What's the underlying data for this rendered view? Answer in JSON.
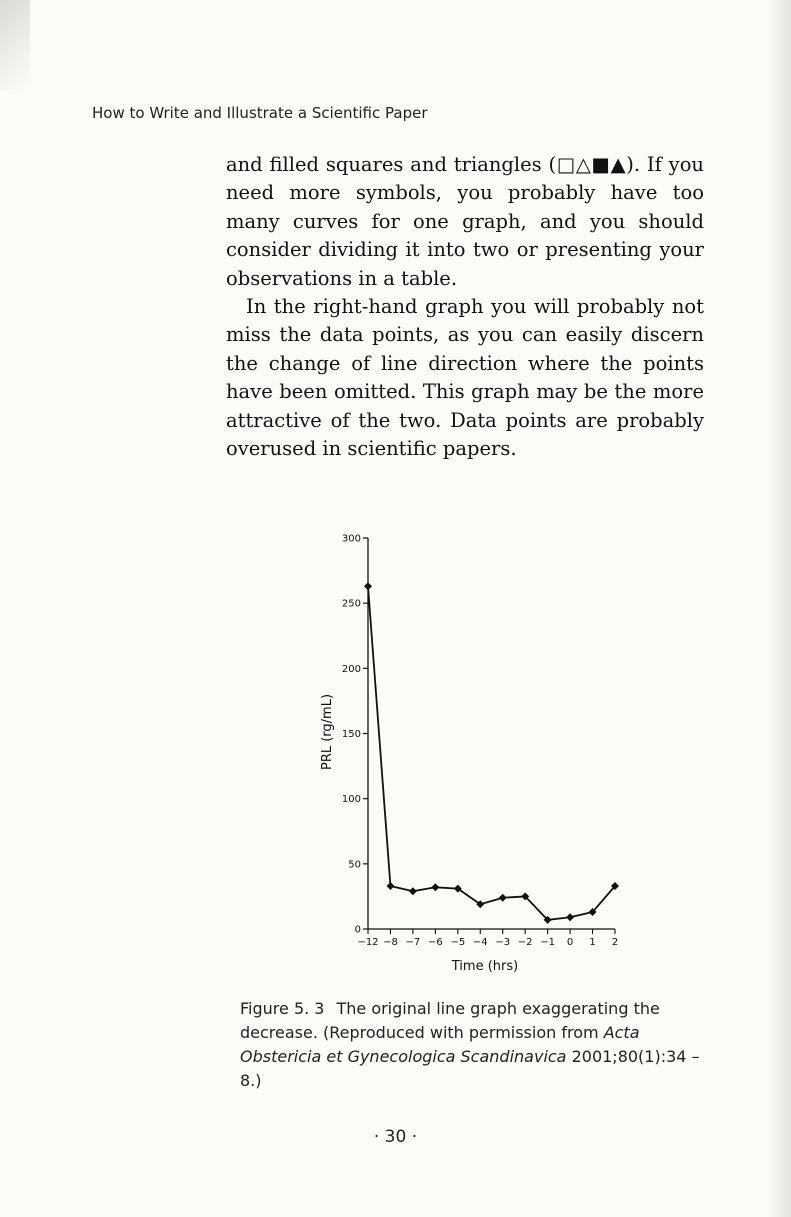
{
  "running_head": "How to Write and Illustrate a Scientific Paper",
  "paragraphs": [
    "and filled squares and triangles (□△■▲). If you need more symbols, you probably have too many curves for one graph, and you should consider dividing it into two or presenting your observations in a table.",
    "In the right-hand graph you will probably not miss the data points, as you can easily discern the change of line direction where the points have been omitted. This graph may be the more attractive of the two. Data points are probably overused in scientific papers."
  ],
  "chart_data": {
    "type": "line",
    "x": [
      -12,
      -8,
      -7,
      -6,
      -5,
      -4,
      -3,
      -2,
      -1,
      0,
      1,
      2
    ],
    "values": [
      263,
      33,
      29,
      32,
      31,
      19,
      24,
      25,
      7,
      9,
      13,
      33
    ],
    "x_tick_labels": [
      "−12",
      "−8",
      "−7",
      "−6",
      "−5",
      "−4",
      "−3",
      "−2",
      "−1",
      "0",
      "1",
      "2"
    ],
    "y_ticks": [
      0,
      50,
      100,
      150,
      200,
      250,
      300
    ],
    "ylim": [
      0,
      300
    ],
    "xlabel": "Time (hrs)",
    "ylabel": "PRL (rg/mL)",
    "marker": "diamond",
    "grid": false
  },
  "caption": {
    "label": "Figure 5. 3",
    "text": "The original line graph exaggerating the decrease. (Reproduced with permission from",
    "journal": "Acta Obstericia et Gynecologica Scandinavica",
    "citation": "2001;80(1):34 – 8.)"
  },
  "page_number": "· 30 ·"
}
